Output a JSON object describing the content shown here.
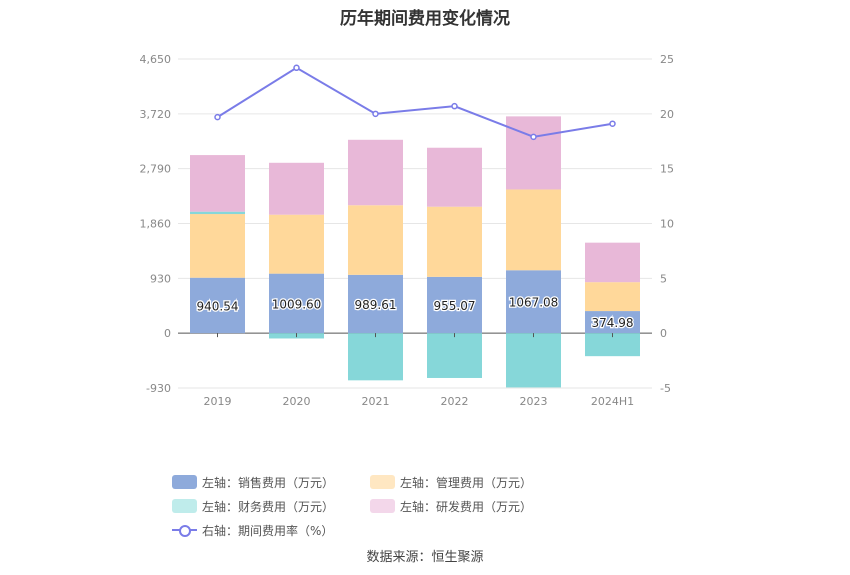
{
  "chart_data": {
    "type": "bar",
    "title": "历年期间费用变化情况",
    "categories": [
      "2019",
      "2020",
      "2021",
      "2022",
      "2023",
      "2024H1"
    ],
    "left_axis": {
      "ticks": [
        "-930",
        "0",
        "930",
        "1,860",
        "2,790",
        "3,720",
        "4,650"
      ],
      "ylim": [
        -930,
        4650
      ]
    },
    "right_axis": {
      "ticks": [
        "-5",
        "0",
        "5",
        "10",
        "15",
        "20",
        "25"
      ],
      "ylim": [
        -5,
        25
      ]
    },
    "stacked": true,
    "series": [
      {
        "name": "左轴：销售费用（万元）",
        "axis": "left",
        "color": "#8eaadb",
        "values": [
          940.54,
          1009.6,
          989.61,
          955.07,
          1067.08,
          374.98
        ]
      },
      {
        "name": "左轴：管理费用（万元）",
        "axis": "left",
        "color": "#ffd89a",
        "values": [
          1080,
          1000,
          1180,
          1190,
          1370,
          490
        ]
      },
      {
        "name": "左轴：财务费用（万元）",
        "axis": "left",
        "color": "#86d7d9",
        "values": [
          40,
          -90,
          -800,
          -760,
          -920,
          -390
        ]
      },
      {
        "name": "左轴：研发费用（万元）",
        "axis": "left",
        "color": "#e8b8d8",
        "values": [
          960,
          880,
          1110,
          1000,
          1240,
          670
        ]
      },
      {
        "name": "右轴：期间费用率（%）",
        "axis": "right",
        "type": "line",
        "color": "#7a7ce8",
        "values": [
          19.7,
          24.2,
          20.0,
          20.7,
          17.9,
          19.1
        ]
      }
    ],
    "data_labels": [
      "940.54",
      "1009.60",
      "989.61",
      "955.07",
      "1067.08",
      "374.98"
    ],
    "grid": true,
    "legend_position": "bottom"
  },
  "legend": [
    {
      "label": "左轴：销售费用（万元）",
      "kind": "box",
      "color": "#8eaadb"
    },
    {
      "label": "左轴：管理费用（万元）",
      "kind": "box",
      "color": "#ffe7c2"
    },
    {
      "label": "左轴：财务费用（万元）",
      "kind": "box",
      "color": "#bfeceb"
    },
    {
      "label": "左轴：研发费用（万元）",
      "kind": "box",
      "color": "#f3d7ea"
    },
    {
      "label": "右轴：期间费用率（%）",
      "kind": "line",
      "color": "#7a7ce8"
    }
  ],
  "source": "数据来源：恒生聚源"
}
